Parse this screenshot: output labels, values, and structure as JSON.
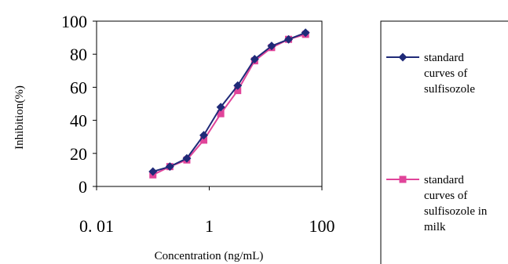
{
  "chart_data": {
    "type": "line",
    "xlabel": "Concentration (ng/mL)",
    "ylabel": "Inhibition(%)",
    "x_scale": "log",
    "xlim": [
      0.01,
      100
    ],
    "ylim": [
      0,
      100
    ],
    "x_ticks": [
      0.01,
      1,
      100
    ],
    "x_tick_labels": [
      "0. 01",
      "1",
      "100"
    ],
    "y_ticks": [
      0,
      20,
      40,
      60,
      80,
      100
    ],
    "y_tick_labels": [
      "0",
      "20",
      "40",
      "60",
      "80",
      "100"
    ],
    "grid": false,
    "legend_position": "right",
    "series": [
      {
        "name": "standard curves of sulfisozole",
        "legend_lines": [
          "standard",
          "curves of",
          "sulfisozole"
        ],
        "color": "#1f2a78",
        "marker": "diamond",
        "x": [
          0.1,
          0.2,
          0.4,
          0.8,
          1.6,
          3.2,
          6.4,
          12.8,
          25.6,
          51.2
        ],
        "y": [
          9,
          12,
          17,
          31,
          48,
          61,
          77,
          85,
          89,
          93
        ]
      },
      {
        "name": "standard curves of sulfisozole in milk",
        "legend_lines": [
          "standard",
          "curves of",
          "sulfisozole in",
          "milk"
        ],
        "color": "#e0449a",
        "marker": "square",
        "x": [
          0.1,
          0.2,
          0.4,
          0.8,
          1.6,
          3.2,
          6.4,
          12.8,
          25.6,
          51.2
        ],
        "y": [
          7,
          12,
          16,
          28,
          44,
          58,
          76,
          84,
          89,
          92
        ]
      }
    ]
  }
}
